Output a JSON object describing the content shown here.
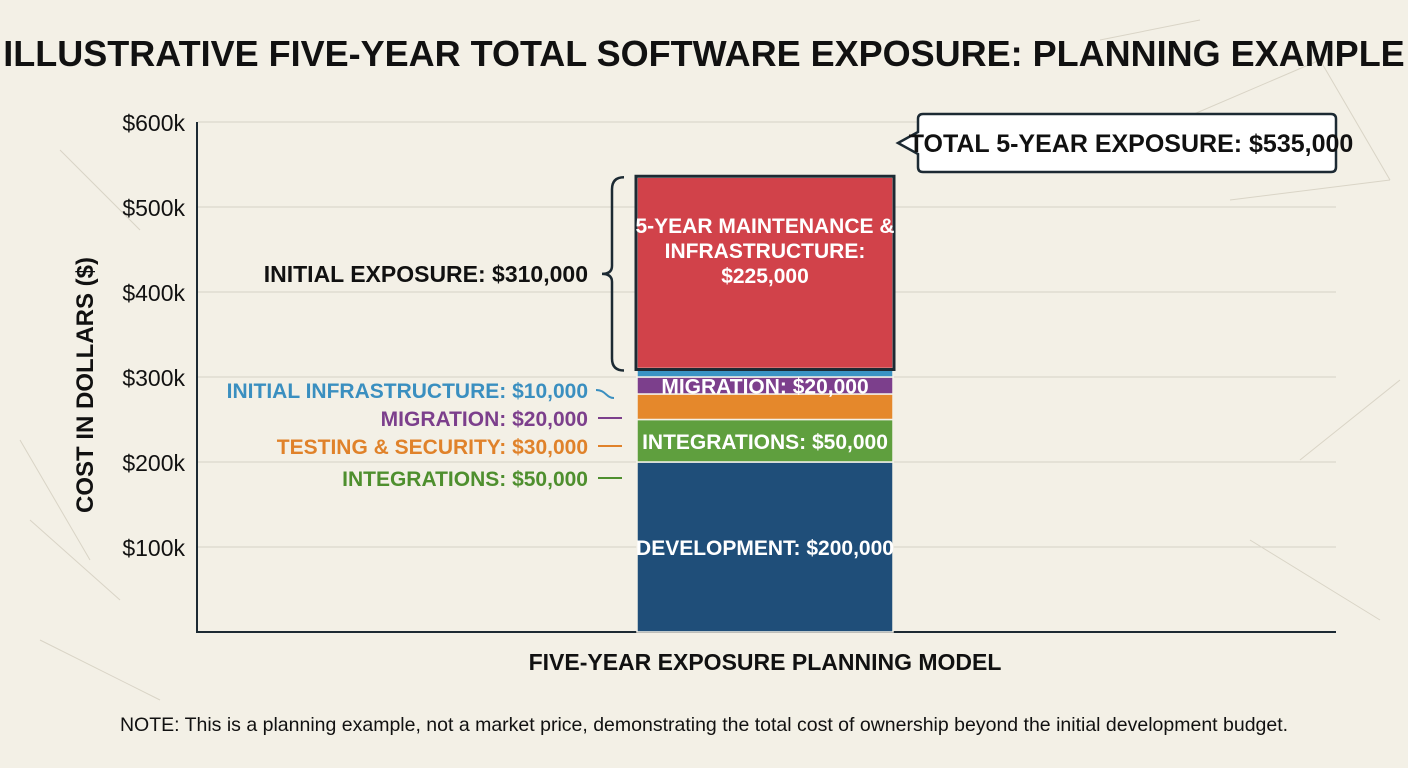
{
  "title": "ILLUSTRATIVE FIVE-YEAR TOTAL SOFTWARE EXPOSURE: PLANNING EXAMPLE",
  "note": "NOTE: This is a planning example, not a market price, demonstrating the total cost of ownership beyond the initial development budget.",
  "chart_data": {
    "type": "bar",
    "stacked": true,
    "categories": [
      "FIVE-YEAR EXPOSURE PLANNING MODEL"
    ],
    "xlabel": "FIVE-YEAR EXPOSURE PLANNING MODEL",
    "ylabel": "COST IN DOLLARS ($)",
    "ylim": [
      0,
      600000
    ],
    "yticks": [
      100000,
      200000,
      300000,
      400000,
      500000,
      600000
    ],
    "ytick_labels": [
      "$100k",
      "$200k",
      "$300k",
      "$400k",
      "$500k",
      "$600k"
    ],
    "grid": true,
    "series": [
      {
        "name": "Development",
        "value": 200000,
        "color": "#1f4e79",
        "bar_label": "DEVELOPMENT: $200,000"
      },
      {
        "name": "Integrations",
        "value": 50000,
        "color": "#5f9f3e",
        "bar_label": "INTEGRATIONS: $50,000",
        "side_label": "INTEGRATIONS: $50,000",
        "side_color": "#4e8f2e"
      },
      {
        "name": "Testing & Security",
        "value": 30000,
        "color": "#e5882b",
        "bar_label": "",
        "side_label": "TESTING & SECURITY: $30,000",
        "side_color": "#e0822a"
      },
      {
        "name": "Migration",
        "value": 20000,
        "color": "#7c3f8c",
        "bar_label": "MIGRATION: $20,000",
        "side_label": "MIGRATION: $20,000",
        "side_color": "#7c3f8c"
      },
      {
        "name": "Initial Infrastructure",
        "value": 10000,
        "color": "#3a93c4",
        "bar_label": "",
        "side_label": "INITIAL INFRASTRUCTURE: $10,000",
        "side_color": "#3a8fc0"
      },
      {
        "name": "5-Year Maintenance & Infrastructure",
        "value": 225000,
        "color": "#d1424a",
        "bar_label_lines": [
          "5-YEAR MAINTENANCE &",
          "INFRASTRUCTURE:",
          "$225,000"
        ]
      }
    ],
    "annotations": {
      "initial_exposure": "INITIAL EXPOSURE: $310,000",
      "total": "TOTAL 5-YEAR EXPOSURE: $535,000"
    }
  }
}
